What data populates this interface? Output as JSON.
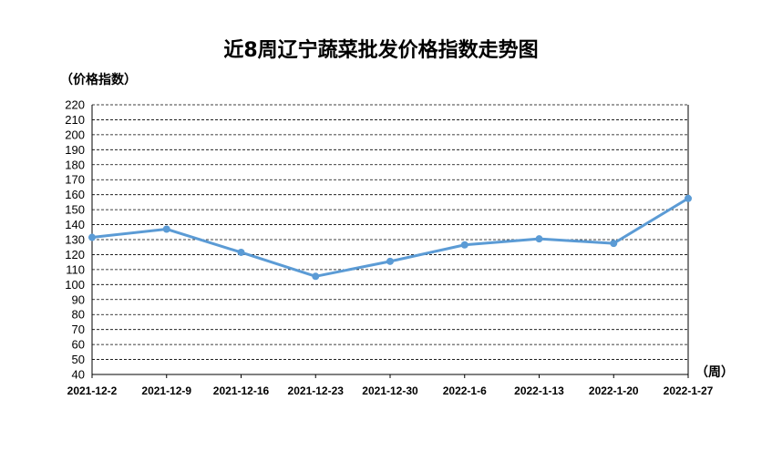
{
  "chart_data": {
    "type": "line",
    "title": "近8周辽宁蔬菜批发价格指数走势图",
    "ylabel": "（价格指数）",
    "xlabel": "（周）",
    "categories": [
      "2021-12-2",
      "2021-12-9",
      "2021-12-16",
      "2021-12-23",
      "2021-12-30",
      "2022-1-6",
      "2022-1-13",
      "2022-1-20",
      "2022-1-27"
    ],
    "values": [
      131.5,
      137,
      121.5,
      105.5,
      115.5,
      126.5,
      130.5,
      127.5,
      157.5
    ],
    "ylim": [
      40,
      220
    ],
    "ytick_step": 10,
    "grid": true,
    "legend": "none",
    "line_color": "#5b9bd5"
  }
}
